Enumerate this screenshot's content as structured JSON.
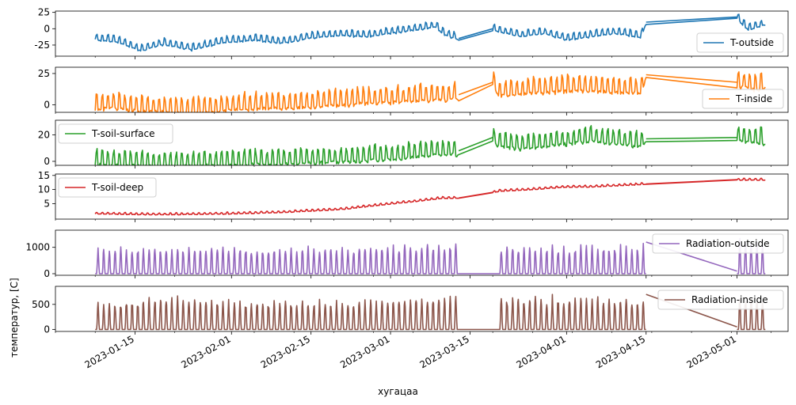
{
  "chart_data": {
    "type": "line",
    "xlabel": "хугацаа",
    "ylabel": "температур, [C]",
    "x_range": [
      "2023-01-01",
      "2023-05-10"
    ],
    "x_tick_labels": [
      "2023-01-15",
      "2023-02-01",
      "2023-02-15",
      "2023-03-01",
      "2023-03-15",
      "2023-04-01",
      "2023-04-15",
      "2023-05-01"
    ],
    "x_tick_dates": [
      "2023-01-15",
      "2023-02-01",
      "2023-02-15",
      "2023-03-01",
      "2023-03-15",
      "2023-04-01",
      "2023-04-15",
      "2023-05-01"
    ],
    "x_minor_tick_dates": [
      "2023-01-01",
      "2023-01-08",
      "2023-01-22",
      "2023-01-29",
      "2023-02-05",
      "2023-02-12",
      "2023-02-19",
      "2023-02-26",
      "2023-03-05",
      "2023-03-12",
      "2023-03-19",
      "2023-03-26",
      "2023-04-02",
      "2023-04-09",
      "2023-04-16",
      "2023-04-23",
      "2023-04-30",
      "2023-05-07"
    ],
    "sharex": true,
    "grid": false,
    "panels": [
      {
        "name": "T-outside",
        "color": "#1f77b4",
        "legend_loc": "lower-right",
        "ylim": [
          -42,
          27
        ],
        "yticks": [
          -25,
          0,
          25
        ],
        "points": [
          [
            "2023-01-08",
            -15
          ],
          [
            "2023-01-12",
            -18
          ],
          [
            "2023-01-16",
            -32
          ],
          [
            "2023-01-20",
            -22
          ],
          [
            "2023-01-25",
            -30
          ],
          [
            "2023-01-30",
            -20
          ],
          [
            "2023-02-05",
            -15
          ],
          [
            "2023-02-10",
            -20
          ],
          [
            "2023-02-15",
            -12
          ],
          [
            "2023-02-20",
            -8
          ],
          [
            "2023-02-25",
            -10
          ],
          [
            "2023-03-01",
            -5
          ],
          [
            "2023-03-05",
            0
          ],
          [
            "2023-03-09",
            5
          ],
          [
            "2023-03-10",
            -5
          ],
          [
            "2023-03-13",
            -15
          ],
          [
            "2023-03-19",
            0
          ],
          [
            "2023-03-20",
            -2
          ],
          [
            "2023-03-24",
            -10
          ],
          [
            "2023-03-28",
            -5
          ],
          [
            "2023-04-01",
            -15
          ],
          [
            "2023-04-05",
            -10
          ],
          [
            "2023-04-10",
            -5
          ],
          [
            "2023-04-14",
            -12
          ],
          [
            "2023-04-15",
            10
          ],
          [
            "2023-05-01",
            18
          ],
          [
            "2023-05-03",
            0
          ],
          [
            "2023-05-06",
            8
          ]
        ],
        "daily_amplitude": 12
      },
      {
        "name": "T-inside",
        "color": "#ff7f0e",
        "legend_loc": "lower-right",
        "ylim": [
          -6,
          30
        ],
        "yticks": [
          0,
          25
        ],
        "points": [
          [
            "2023-01-08",
            0
          ],
          [
            "2023-01-12",
            0
          ],
          [
            "2023-01-16",
            -2
          ],
          [
            "2023-01-20",
            -3
          ],
          [
            "2023-01-25",
            -4
          ],
          [
            "2023-01-30",
            -2
          ],
          [
            "2023-02-05",
            0
          ],
          [
            "2023-02-10",
            0
          ],
          [
            "2023-02-15",
            1
          ],
          [
            "2023-02-20",
            3
          ],
          [
            "2023-02-25",
            4
          ],
          [
            "2023-03-01",
            5
          ],
          [
            "2023-03-05",
            6
          ],
          [
            "2023-03-10",
            7
          ],
          [
            "2023-03-13",
            8
          ],
          [
            "2023-03-19",
            18
          ],
          [
            "2023-03-20",
            10
          ],
          [
            "2023-03-25",
            12
          ],
          [
            "2023-04-01",
            14
          ],
          [
            "2023-04-05",
            14
          ],
          [
            "2023-04-10",
            13
          ],
          [
            "2023-04-14",
            12
          ],
          [
            "2023-04-15",
            24
          ],
          [
            "2023-05-01",
            18
          ],
          [
            "2023-05-04",
            15
          ],
          [
            "2023-05-06",
            16
          ]
        ],
        "daily_amplitude": 16
      },
      {
        "name": "T-soil-surface",
        "color": "#2ca02c",
        "legend_loc": "upper-left",
        "ylim": [
          -3,
          31
        ],
        "yticks": [
          0,
          20
        ],
        "points": [
          [
            "2023-01-08",
            0
          ],
          [
            "2023-01-16",
            -1
          ],
          [
            "2023-01-25",
            -1
          ],
          [
            "2023-02-01",
            0
          ],
          [
            "2023-02-10",
            1
          ],
          [
            "2023-02-20",
            2
          ],
          [
            "2023-03-01",
            4
          ],
          [
            "2023-03-05",
            6
          ],
          [
            "2023-03-10",
            8
          ],
          [
            "2023-03-13",
            8
          ],
          [
            "2023-03-19",
            18
          ],
          [
            "2023-03-20",
            14
          ],
          [
            "2023-03-25",
            12
          ],
          [
            "2023-04-01",
            16
          ],
          [
            "2023-04-05",
            18
          ],
          [
            "2023-04-10",
            16
          ],
          [
            "2023-04-14",
            14
          ],
          [
            "2023-04-15",
            17
          ],
          [
            "2023-05-01",
            18
          ],
          [
            "2023-05-06",
            16
          ]
        ],
        "daily_amplitude": 14
      },
      {
        "name": "T-soil-deep",
        "color": "#d62728",
        "legend_loc": "upper-left",
        "ylim": [
          -0.5,
          15.5
        ],
        "yticks": [
          5,
          10,
          15
        ],
        "points": [
          [
            "2023-01-08",
            1.5
          ],
          [
            "2023-01-15",
            1.3
          ],
          [
            "2023-01-20",
            1.2
          ],
          [
            "2023-02-01",
            1.5
          ],
          [
            "2023-02-10",
            2
          ],
          [
            "2023-02-20",
            3
          ],
          [
            "2023-03-01",
            5
          ],
          [
            "2023-03-06",
            6
          ],
          [
            "2023-03-10",
            7
          ],
          [
            "2023-03-13",
            7
          ],
          [
            "2023-03-19",
            9
          ],
          [
            "2023-03-20",
            9.5
          ],
          [
            "2023-03-25",
            10
          ],
          [
            "2023-04-01",
            11
          ],
          [
            "2023-04-05",
            11
          ],
          [
            "2023-04-10",
            11.5
          ],
          [
            "2023-04-15",
            12
          ],
          [
            "2023-05-01",
            13.5
          ],
          [
            "2023-05-06",
            13.5
          ]
        ],
        "daily_amplitude": 0.8
      },
      {
        "name": "Radiation-outside",
        "color": "#9467bd",
        "legend_loc": "upper-right",
        "ylim": [
          -60,
          1650
        ],
        "yticks": [
          0,
          1000
        ],
        "spiky": true,
        "base": 0,
        "peak_points": [
          [
            "2023-01-08",
            1050
          ],
          [
            "2023-01-20",
            1050
          ],
          [
            "2023-02-01",
            1100
          ],
          [
            "2023-02-15",
            1050
          ],
          [
            "2023-03-01",
            1100
          ],
          [
            "2023-03-10",
            1200
          ],
          [
            "2023-03-13",
            1300
          ],
          [
            "2023-03-20",
            1100
          ],
          [
            "2023-04-01",
            1100
          ],
          [
            "2023-04-15",
            1150
          ],
          [
            "2023-05-01",
            1400
          ],
          [
            "2023-05-06",
            1200
          ]
        ],
        "gaps": [
          [
            "2023-03-13",
            "2023-03-20"
          ],
          [
            "2023-04-15",
            "2023-05-01"
          ]
        ],
        "gap_lines": [
          [
            [
              "2023-03-13",
              0
            ],
            [
              "2023-03-20",
              0
            ]
          ],
          [
            [
              "2023-04-15",
              1200
            ],
            [
              "2023-05-01",
              100
            ]
          ]
        ]
      },
      {
        "name": "Radiation-inside",
        "color": "#8c564b",
        "legend_loc": "upper-right",
        "ylim": [
          -40,
          860
        ],
        "yticks": [
          0,
          500
        ],
        "spiky": true,
        "base": 0,
        "peak_points": [
          [
            "2023-01-08",
            550
          ],
          [
            "2023-01-20",
            700
          ],
          [
            "2023-02-01",
            600
          ],
          [
            "2023-02-15",
            600
          ],
          [
            "2023-03-01",
            650
          ],
          [
            "2023-03-10",
            700
          ],
          [
            "2023-03-13",
            720
          ],
          [
            "2023-03-20",
            700
          ],
          [
            "2023-04-01",
            700
          ],
          [
            "2023-04-15",
            650
          ],
          [
            "2023-05-01",
            750
          ],
          [
            "2023-05-06",
            600
          ]
        ],
        "gaps": [
          [
            "2023-03-13",
            "2023-03-20"
          ],
          [
            "2023-04-15",
            "2023-05-01"
          ]
        ],
        "gap_lines": [
          [
            [
              "2023-03-13",
              0
            ],
            [
              "2023-03-20",
              0
            ]
          ],
          [
            [
              "2023-04-15",
              700
            ],
            [
              "2023-05-01",
              50
            ]
          ]
        ]
      }
    ]
  }
}
